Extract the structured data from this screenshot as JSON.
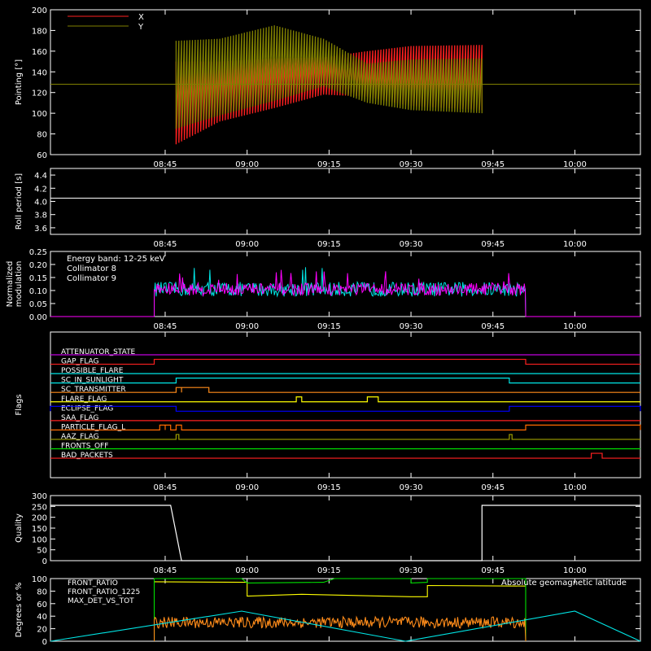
{
  "time_ticks": [
    "08:45",
    "09:00",
    "09:15",
    "09:30",
    "09:45",
    "10:00"
  ],
  "colors": {
    "background": "#000000",
    "axes": "#ffffff",
    "red": "#ff2020",
    "olive": "#808000",
    "cyan": "#00e5e5",
    "magenta": "#ff00ff",
    "yellow": "#ffff00",
    "green": "#00e000",
    "orange": "#ff8c1a",
    "blue": "#0000ff",
    "purple": "#c000e0",
    "brown": "#ff6a00"
  },
  "chart_data": [
    {
      "type": "line",
      "ylabel": "Pointing [°]",
      "ylim": [
        60,
        200
      ],
      "yticks": [
        "60",
        "80",
        "100",
        "120",
        "140",
        "160",
        "180",
        "200"
      ],
      "legend_placement": "top-left",
      "series": [
        {
          "name": "X",
          "color": "#ff2020",
          "kind": "oscillating",
          "points": [
            {
              "t": "08:47",
              "lo": 70,
              "hi": 150
            },
            {
              "t": "08:55",
              "lo": 92,
              "hi": 150
            },
            {
              "t": "09:05",
              "lo": 105,
              "hi": 153
            },
            {
              "t": "09:14",
              "lo": 118,
              "hi": 154
            },
            {
              "t": "09:22",
              "lo": 116,
              "hi": 160
            },
            {
              "t": "09:30",
              "lo": 107,
              "hi": 165
            },
            {
              "t": "09:43",
              "lo": 103,
              "hi": 166
            }
          ]
        },
        {
          "name": "Y",
          "color": "#808000",
          "kind": "oscillating",
          "points": [
            {
              "t": "08:47",
              "lo": 85,
              "hi": 170
            },
            {
              "t": "08:55",
              "lo": 98,
              "hi": 172
            },
            {
              "t": "09:05",
              "lo": 112,
              "hi": 185
            },
            {
              "t": "09:14",
              "lo": 126,
              "hi": 172
            },
            {
              "t": "09:22",
              "lo": 110,
              "hi": 148
            },
            {
              "t": "09:30",
              "lo": 103,
              "hi": 152
            },
            {
              "t": "09:43",
              "lo": 100,
              "hi": 153
            }
          ]
        }
      ],
      "baseline_value": 128
    },
    {
      "type": "line",
      "ylabel": "Roll period [s]",
      "ylim": [
        3.5,
        4.5
      ],
      "yticks": [
        "3.6",
        "3.8",
        "4.0",
        "4.2",
        "4.4"
      ],
      "series": [
        {
          "color": "#ffffff",
          "constant": 4.05
        }
      ]
    },
    {
      "type": "line",
      "ylabel": [
        "Normalized",
        "modulation"
      ],
      "ylim": [
        0,
        0.25
      ],
      "yticks": [
        "0.00",
        "0.05",
        "0.10",
        "0.15",
        "0.20",
        "0.25"
      ],
      "legend_title": "Energy band: 12-25 keV",
      "legend_placement": "top-left",
      "series": [
        {
          "name": "Collimator 8",
          "color": "#00e5e5",
          "mean": 0.105,
          "noise": 0.04,
          "start": "08:43",
          "end": "09:51"
        },
        {
          "name": "Collimator 9",
          "color": "#ff00ff",
          "mean": 0.105,
          "noise": 0.035,
          "start": "08:43",
          "end": "09:51"
        }
      ]
    },
    {
      "type": "line",
      "ylabel": "Flags",
      "flags": [
        {
          "name": "ATTENUATOR_STATE",
          "color": "#c000e0",
          "segments": []
        },
        {
          "name": "GAP_FLAG",
          "color": "#ff2020",
          "segments": [
            [
              "08:43",
              "09:51"
            ]
          ]
        },
        {
          "name": "POSSIBLE_FLARE",
          "color": "#00e5e5",
          "segments": []
        },
        {
          "name": "SC_IN_SUNLIGHT",
          "color": "#00e5e5",
          "segments": [
            [
              "08:47",
              "09:48"
            ]
          ]
        },
        {
          "name": "SC_TRANSMITTER",
          "color": "#ff8c1a",
          "segments": [
            [
              "08:47",
              "08:48"
            ],
            [
              "08:48",
              "08:53"
            ]
          ]
        },
        {
          "name": "FLARE_FLAG",
          "color": "#ffff00",
          "segments": [
            [
              "09:09",
              "09:10"
            ],
            [
              "09:22",
              "09:24"
            ]
          ]
        },
        {
          "name": "ECLIPSE_FLAG",
          "color": "#0000ff",
          "segments": [
            [
              "08:24",
              "08:47"
            ],
            [
              "09:48",
              "10:12"
            ]
          ]
        },
        {
          "name": "SAA_FLAG",
          "color": "#ff2020",
          "segments": []
        },
        {
          "name": "PARTICLE_FLAG_L",
          "color": "#ff6a00",
          "segments": [
            [
              "08:44",
              "08:45"
            ],
            [
              "08:45",
              "08:46"
            ],
            [
              "08:47",
              "08:48"
            ],
            [
              "09:51",
              "10:12"
            ]
          ]
        },
        {
          "name": "AAZ_FLAG",
          "color": "#a0a000",
          "segments": [
            [
              "08:47",
              "08:47.5"
            ],
            [
              "09:48",
              "09:48.5"
            ]
          ]
        },
        {
          "name": "FRONTS_OFF",
          "color": "#00e000",
          "segments": []
        },
        {
          "name": "BAD_PACKETS",
          "color": "#ff2020",
          "segments": [
            [
              "10:03",
              "10:05"
            ]
          ]
        }
      ]
    },
    {
      "type": "line",
      "ylabel": "Quality",
      "ylim": [
        0,
        300
      ],
      "yticks": [
        "0",
        "50",
        "100",
        "150",
        "200",
        "250",
        "300"
      ],
      "series": [
        {
          "color": "#ffffff",
          "points": [
            [
              "08:24",
              255
            ],
            [
              "08:46",
              255
            ],
            [
              "08:48",
              0
            ],
            [
              "09:43",
              0
            ],
            [
              "09:43",
              255
            ],
            [
              "10:12",
              255
            ]
          ]
        }
      ]
    },
    {
      "type": "line",
      "ylabel": "Degrees or %",
      "ylim": [
        0,
        100
      ],
      "yticks": [
        "0",
        "20",
        "40",
        "60",
        "80",
        "100"
      ],
      "annotation": "Absolute geomagnetic latitude",
      "series": [
        {
          "name": "FRONT_RATIO",
          "color": "#ffff00",
          "points": [
            [
              "08:43",
              95
            ],
            [
              "09:00",
              94
            ],
            [
              "09:00",
              72
            ],
            [
              "09:10",
              75
            ],
            [
              "09:20",
              73
            ],
            [
              "09:30",
              71
            ],
            [
              "09:33",
              71
            ],
            [
              "09:33",
              89
            ],
            [
              "09:51",
              88
            ]
          ]
        },
        {
          "name": "FRONT_RATIO_1225",
          "color": "#00e000",
          "points": [
            [
              "08:43",
              100
            ],
            [
              "08:59",
              100
            ],
            [
              "09:00",
              93
            ],
            [
              "09:14",
              94
            ],
            [
              "09:16",
              100
            ],
            [
              "09:30",
              100
            ],
            [
              "09:30",
              93
            ],
            [
              "09:33",
              94
            ],
            [
              "09:33",
              100
            ],
            [
              "09:51",
              100
            ]
          ]
        },
        {
          "name": "MAX_DET_VS_TOT",
          "color": "#ff8c1a",
          "mean": 30,
          "noise": 9,
          "start": "08:43",
          "end": "09:51"
        },
        {
          "color": "#00e5e5",
          "kind": "latitude",
          "points": [
            [
              "08:24",
              0
            ],
            [
              "08:59",
              48
            ],
            [
              "09:29",
              0
            ],
            [
              "10:00",
              48
            ],
            [
              "10:12",
              0
            ]
          ]
        }
      ]
    }
  ]
}
